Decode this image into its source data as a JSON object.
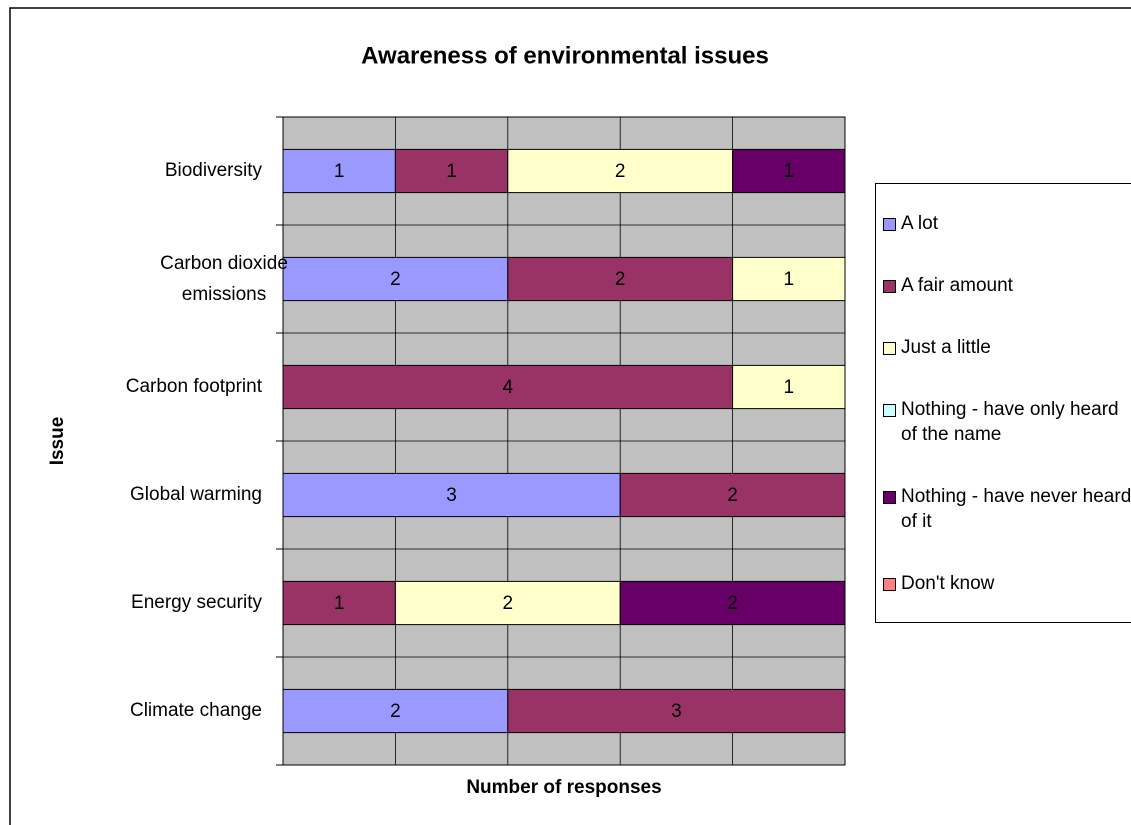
{
  "chart_data": {
    "type": "stacked-bar",
    "orientation": "horizontal",
    "title": "Awareness of environmental issues",
    "x_label": "Number of responses",
    "y_label": "Issue",
    "categories": [
      "Biodiversity",
      "Carbon dioxide emissions",
      "Carbon footprint",
      "Global warming",
      "Energy security",
      "Climate change"
    ],
    "series": [
      {
        "name": "A lot",
        "color": "#9999ff",
        "values": [
          1,
          2,
          null,
          3,
          null,
          2
        ]
      },
      {
        "name": "A fair amount",
        "color": "#993366",
        "values": [
          1,
          2,
          4,
          2,
          1,
          3
        ]
      },
      {
        "name": "Just a little",
        "color": "#ffffcc",
        "values": [
          2,
          1,
          1,
          null,
          2,
          null
        ]
      },
      {
        "name": "Nothing - have only heard of the name",
        "color": "#ccffff",
        "values": [
          null,
          null,
          null,
          null,
          null,
          null
        ]
      },
      {
        "name": "Nothing - have never heard of it",
        "color": "#660066",
        "values": [
          1,
          null,
          null,
          null,
          2,
          null
        ]
      },
      {
        "name": "Don't know",
        "color": "#ff8080",
        "values": [
          null,
          null,
          null,
          null,
          null,
          null
        ]
      }
    ],
    "xlim": [
      0,
      5
    ],
    "xticks": [
      0,
      1,
      2,
      3,
      4,
      5
    ],
    "grid": true,
    "legend": "right"
  }
}
